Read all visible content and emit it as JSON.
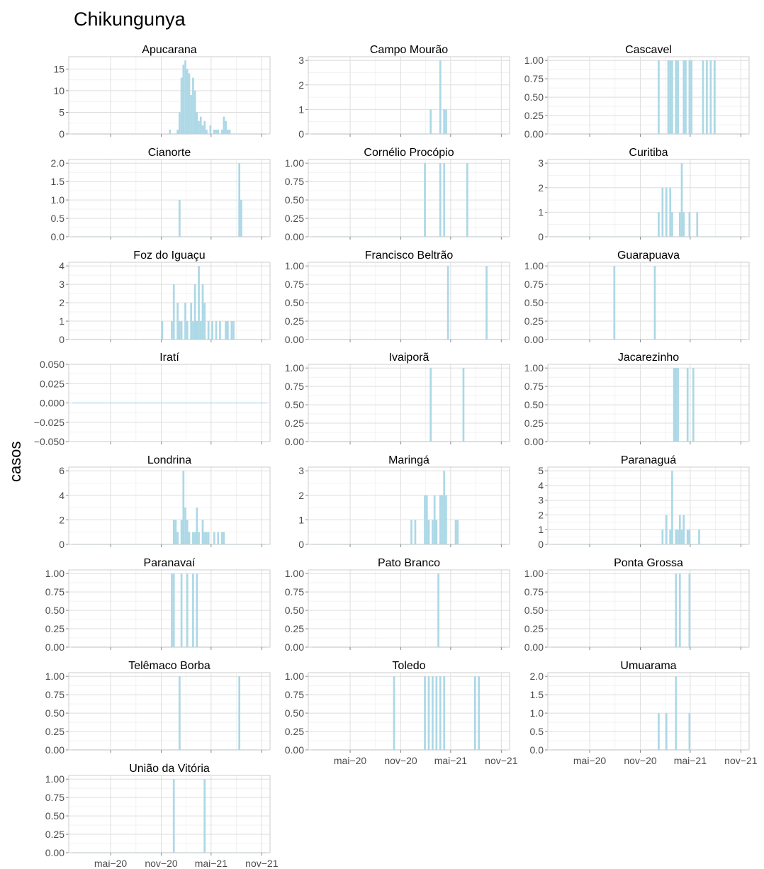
{
  "chart_data": {
    "type": "bar",
    "title": "Chikungunya",
    "xlabel": "",
    "ylabel": "casos",
    "x_tick_labels": [
      "mai−20",
      "nov−20",
      "mai−21",
      "nov−21"
    ],
    "x_tick_dates": [
      "2020-05",
      "2020-11",
      "2021-05",
      "2021-11"
    ],
    "xlim": [
      "2019-12",
      "2021-12"
    ],
    "bar_color": "#ADD8E6",
    "grid": true,
    "panels": [
      {
        "name": "Apucarana",
        "ylim": [
          0,
          17.85
        ],
        "yticks": [
          "0",
          "5",
          "10",
          "15"
        ],
        "ytick_values": [
          0,
          5,
          10,
          15
        ],
        "bars": [
          [
            "2020-11-29",
            1
          ],
          [
            "2020-12-27",
            1
          ],
          [
            "2021-01-03",
            5
          ],
          [
            "2021-01-10",
            13
          ],
          [
            "2021-01-17",
            16
          ],
          [
            "2021-01-24",
            17
          ],
          [
            "2021-01-31",
            15
          ],
          [
            "2021-02-07",
            14
          ],
          [
            "2021-02-14",
            9
          ],
          [
            "2021-02-21",
            13
          ],
          [
            "2021-02-28",
            10
          ],
          [
            "2021-03-07",
            5
          ],
          [
            "2021-03-14",
            3
          ],
          [
            "2021-03-21",
            4
          ],
          [
            "2021-03-28",
            2
          ],
          [
            "2021-04-04",
            3
          ],
          [
            "2021-04-11",
            1
          ],
          [
            "2021-04-25",
            2
          ],
          [
            "2021-05-09",
            1
          ],
          [
            "2021-05-16",
            1
          ],
          [
            "2021-05-23",
            1
          ],
          [
            "2021-06-06",
            1
          ],
          [
            "2021-06-13",
            4
          ],
          [
            "2021-06-20",
            3
          ],
          [
            "2021-06-27",
            1
          ],
          [
            "2021-07-04",
            1
          ]
        ]
      },
      {
        "name": "Campo Mourão",
        "ylim": [
          0,
          3.15
        ],
        "yticks": [
          "0",
          "1",
          "2",
          "3"
        ],
        "ytick_values": [
          0,
          1,
          2,
          3
        ],
        "bars": [
          [
            "2021-02-14",
            1
          ],
          [
            "2021-03-21",
            3
          ],
          [
            "2021-04-04",
            1
          ],
          [
            "2021-04-11",
            1
          ]
        ]
      },
      {
        "name": "Cascavel",
        "ylim": [
          0,
          1.05
        ],
        "yticks": [
          "0.00",
          "0.25",
          "0.50",
          "0.75",
          "1.00"
        ],
        "ytick_values": [
          0,
          0.25,
          0.5,
          0.75,
          1
        ],
        "bars": [
          [
            "2021-01-03",
            1
          ],
          [
            "2021-02-07",
            1
          ],
          [
            "2021-02-14",
            1
          ],
          [
            "2021-02-21",
            1
          ],
          [
            "2021-03-07",
            1
          ],
          [
            "2021-03-14",
            1
          ],
          [
            "2021-04-04",
            1
          ],
          [
            "2021-04-11",
            1
          ],
          [
            "2021-04-25",
            1
          ],
          [
            "2021-05-02",
            1
          ],
          [
            "2021-06-13",
            1
          ],
          [
            "2021-06-27",
            1
          ],
          [
            "2021-07-11",
            1
          ],
          [
            "2021-07-25",
            1
          ]
        ]
      },
      {
        "name": "Cianorte",
        "ylim": [
          0,
          2.1
        ],
        "yticks": [
          "0.0",
          "0.5",
          "1.0",
          "1.5",
          "2.0"
        ],
        "ytick_values": [
          0,
          0.5,
          1,
          1.5,
          2
        ],
        "bars": [
          [
            "2021-01-03",
            1
          ],
          [
            "2021-08-08",
            2
          ],
          [
            "2021-08-15",
            1
          ]
        ]
      },
      {
        "name": "Cornélio Procópio",
        "ylim": [
          0,
          1.05
        ],
        "yticks": [
          "0.00",
          "0.25",
          "0.50",
          "0.75",
          "1.00"
        ],
        "ytick_values": [
          0,
          0.25,
          0.5,
          0.75,
          1
        ],
        "bars": [
          [
            "2021-01-24",
            1
          ],
          [
            "2021-03-21",
            1
          ],
          [
            "2021-04-04",
            1
          ],
          [
            "2021-06-27",
            1
          ]
        ]
      },
      {
        "name": "Curitiba",
        "ylim": [
          0,
          3.15
        ],
        "yticks": [
          "0",
          "1",
          "2",
          "3"
        ],
        "ytick_values": [
          0,
          1,
          2,
          3
        ],
        "bars": [
          [
            "2021-01-03",
            1
          ],
          [
            "2021-01-17",
            2
          ],
          [
            "2021-01-31",
            2
          ],
          [
            "2021-02-14",
            2
          ],
          [
            "2021-02-21",
            1
          ],
          [
            "2021-03-21",
            1
          ],
          [
            "2021-03-28",
            3
          ],
          [
            "2021-04-04",
            1
          ],
          [
            "2021-04-25",
            1
          ],
          [
            "2021-05-23",
            1
          ]
        ]
      },
      {
        "name": "Foz do Iguaçu",
        "ylim": [
          0,
          4.2
        ],
        "yticks": [
          "0",
          "1",
          "2",
          "3",
          "4"
        ],
        "ytick_values": [
          0,
          1,
          2,
          3,
          4
        ],
        "bars": [
          [
            "2020-11-01",
            1
          ],
          [
            "2020-12-06",
            1
          ],
          [
            "2020-12-13",
            3
          ],
          [
            "2020-12-27",
            2
          ],
          [
            "2021-01-03",
            1
          ],
          [
            "2021-01-10",
            1
          ],
          [
            "2021-01-24",
            2
          ],
          [
            "2021-01-31",
            1
          ],
          [
            "2021-02-14",
            2
          ],
          [
            "2021-02-21",
            1
          ],
          [
            "2021-02-28",
            3
          ],
          [
            "2021-03-07",
            1
          ],
          [
            "2021-03-14",
            4
          ],
          [
            "2021-03-21",
            1
          ],
          [
            "2021-03-28",
            3
          ],
          [
            "2021-04-04",
            2
          ],
          [
            "2021-04-18",
            1
          ],
          [
            "2021-05-02",
            1
          ],
          [
            "2021-05-16",
            1
          ],
          [
            "2021-05-30",
            1
          ],
          [
            "2021-06-20",
            1
          ],
          [
            "2021-06-27",
            1
          ],
          [
            "2021-07-11",
            1
          ],
          [
            "2021-07-18",
            1
          ]
        ]
      },
      {
        "name": "Francisco Beltrão",
        "ylim": [
          0,
          1.05
        ],
        "yticks": [
          "0.00",
          "0.25",
          "0.50",
          "0.75",
          "1.00"
        ],
        "ytick_values": [
          0,
          0.25,
          0.5,
          0.75,
          1
        ],
        "bars": [
          [
            "2021-04-18",
            1
          ],
          [
            "2021-09-05",
            1
          ]
        ]
      },
      {
        "name": "Guarapuava",
        "ylim": [
          0,
          1.05
        ],
        "yticks": [
          "0.00",
          "0.25",
          "0.50",
          "0.75",
          "1.00"
        ],
        "ytick_values": [
          0,
          0.25,
          0.5,
          0.75,
          1
        ],
        "bars": [
          [
            "2020-07-26",
            1
          ],
          [
            "2020-12-20",
            1
          ]
        ]
      },
      {
        "name": "Iratí",
        "ylim": [
          -0.05,
          0.05
        ],
        "yticks": [
          "−0.050",
          "−0.025",
          "0.000",
          "0.025",
          "0.050"
        ],
        "ytick_values": [
          -0.05,
          -0.025,
          0,
          0.025,
          0.05
        ],
        "bars": []
      },
      {
        "name": "Ivaiporã",
        "ylim": [
          0,
          1.05
        ],
        "yticks": [
          "0.00",
          "0.25",
          "0.50",
          "0.75",
          "1.00"
        ],
        "ytick_values": [
          0,
          0.25,
          0.5,
          0.75,
          1
        ],
        "bars": [
          [
            "2021-02-14",
            1
          ],
          [
            "2021-06-13",
            1
          ]
        ]
      },
      {
        "name": "Jacarezinho",
        "ylim": [
          0,
          1.05
        ],
        "yticks": [
          "0.00",
          "0.25",
          "0.50",
          "0.75",
          "1.00"
        ],
        "ytick_values": [
          0,
          0.25,
          0.5,
          0.75,
          1
        ],
        "bars": [
          [
            "2021-02-28",
            1
          ],
          [
            "2021-03-07",
            1
          ],
          [
            "2021-03-14",
            1
          ],
          [
            "2021-04-18",
            1
          ],
          [
            "2021-05-09",
            1
          ]
        ]
      },
      {
        "name": "Londrina",
        "ylim": [
          0,
          6.3
        ],
        "yticks": [
          "0",
          "2",
          "4",
          "6"
        ],
        "ytick_values": [
          0,
          2,
          4,
          6
        ],
        "bars": [
          [
            "2020-12-13",
            2
          ],
          [
            "2020-12-20",
            2
          ],
          [
            "2020-12-27",
            1
          ],
          [
            "2021-01-10",
            2
          ],
          [
            "2021-01-17",
            6
          ],
          [
            "2021-01-24",
            3
          ],
          [
            "2021-01-31",
            2
          ],
          [
            "2021-02-07",
            1
          ],
          [
            "2021-02-21",
            1
          ],
          [
            "2021-02-28",
            1
          ],
          [
            "2021-03-07",
            3
          ],
          [
            "2021-03-14",
            1
          ],
          [
            "2021-03-28",
            2
          ],
          [
            "2021-04-04",
            1
          ],
          [
            "2021-04-11",
            1
          ],
          [
            "2021-04-18",
            1
          ],
          [
            "2021-05-09",
            1
          ],
          [
            "2021-05-23",
            1
          ],
          [
            "2021-06-06",
            1
          ],
          [
            "2021-06-13",
            1
          ]
        ]
      },
      {
        "name": "Maringá",
        "ylim": [
          0,
          3.15
        ],
        "yticks": [
          "0",
          "1",
          "2",
          "3"
        ],
        "ytick_values": [
          0,
          1,
          2,
          3
        ],
        "bars": [
          [
            "2020-12-06",
            1
          ],
          [
            "2020-12-20",
            1
          ],
          [
            "2021-01-24",
            2
          ],
          [
            "2021-01-31",
            2
          ],
          [
            "2021-02-07",
            1
          ],
          [
            "2021-02-21",
            1
          ],
          [
            "2021-02-28",
            2
          ],
          [
            "2021-03-07",
            1
          ],
          [
            "2021-03-21",
            2
          ],
          [
            "2021-03-28",
            2
          ],
          [
            "2021-04-04",
            3
          ],
          [
            "2021-04-11",
            2
          ],
          [
            "2021-05-16",
            1
          ],
          [
            "2021-05-23",
            1
          ]
        ]
      },
      {
        "name": "Paranaguá",
        "ylim": [
          0,
          5.25
        ],
        "yticks": [
          "0",
          "1",
          "2",
          "3",
          "4",
          "5"
        ],
        "ytick_values": [
          0,
          1,
          2,
          3,
          4,
          5
        ],
        "bars": [
          [
            "2021-01-17",
            1
          ],
          [
            "2021-01-31",
            2
          ],
          [
            "2021-02-14",
            1
          ],
          [
            "2021-02-21",
            5
          ],
          [
            "2021-03-07",
            1
          ],
          [
            "2021-03-14",
            1
          ],
          [
            "2021-03-21",
            2
          ],
          [
            "2021-03-28",
            1
          ],
          [
            "2021-04-04",
            2
          ],
          [
            "2021-04-18",
            1
          ],
          [
            "2021-04-25",
            1
          ],
          [
            "2021-05-30",
            1
          ]
        ]
      },
      {
        "name": "Paranavaí",
        "ylim": [
          0,
          1.05
        ],
        "yticks": [
          "0.00",
          "0.25",
          "0.50",
          "0.75",
          "1.00"
        ],
        "ytick_values": [
          0,
          0.25,
          0.5,
          0.75,
          1
        ],
        "bars": [
          [
            "2020-12-06",
            1
          ],
          [
            "2020-12-13",
            1
          ],
          [
            "2021-01-10",
            1
          ],
          [
            "2021-01-31",
            1
          ],
          [
            "2021-02-21",
            1
          ],
          [
            "2021-03-07",
            1
          ]
        ]
      },
      {
        "name": "Pato Branco",
        "ylim": [
          0,
          1.05
        ],
        "yticks": [
          "0.00",
          "0.25",
          "0.50",
          "0.75",
          "1.00"
        ],
        "ytick_values": [
          0,
          0.25,
          0.5,
          0.75,
          1
        ],
        "bars": [
          [
            "2021-03-14",
            1
          ]
        ]
      },
      {
        "name": "Ponta Grossa",
        "ylim": [
          0,
          1.05
        ],
        "yticks": [
          "0.00",
          "0.25",
          "0.50",
          "0.75",
          "1.00"
        ],
        "ytick_values": [
          0,
          0.25,
          0.5,
          0.75,
          1
        ],
        "bars": [
          [
            "2021-03-07",
            1
          ],
          [
            "2021-03-21",
            1
          ],
          [
            "2021-04-25",
            1
          ]
        ]
      },
      {
        "name": "Telêmaco Borba",
        "ylim": [
          0,
          1.05
        ],
        "yticks": [
          "0.00",
          "0.25",
          "0.50",
          "0.75",
          "1.00"
        ],
        "ytick_values": [
          0,
          0.25,
          0.5,
          0.75,
          1
        ],
        "bars": [
          [
            "2021-01-03",
            1
          ],
          [
            "2021-08-08",
            1
          ]
        ]
      },
      {
        "name": "Toledo",
        "ylim": [
          0,
          1.05
        ],
        "yticks": [
          "0.00",
          "0.25",
          "0.50",
          "0.75",
          "1.00"
        ],
        "ytick_values": [
          0,
          0.25,
          0.5,
          0.75,
          1
        ],
        "bars": [
          [
            "2020-10-04",
            1
          ],
          [
            "2021-01-24",
            1
          ],
          [
            "2021-02-07",
            1
          ],
          [
            "2021-02-21",
            1
          ],
          [
            "2021-03-07",
            1
          ],
          [
            "2021-03-21",
            1
          ],
          [
            "2021-04-04",
            1
          ],
          [
            "2021-07-25",
            1
          ],
          [
            "2021-08-08",
            1
          ]
        ]
      },
      {
        "name": "Umuarama",
        "ylim": [
          0,
          2.1
        ],
        "yticks": [
          "0.0",
          "0.5",
          "1.0",
          "1.5",
          "2.0"
        ],
        "ytick_values": [
          0,
          0.5,
          1,
          1.5,
          2
        ],
        "bars": [
          [
            "2021-01-03",
            1
          ],
          [
            "2021-01-31",
            1
          ],
          [
            "2021-03-07",
            2
          ],
          [
            "2021-04-25",
            1
          ]
        ]
      },
      {
        "name": "União da Vitória",
        "ylim": [
          0,
          1.05
        ],
        "yticks": [
          "0.00",
          "0.25",
          "0.50",
          "0.75",
          "1.00"
        ],
        "ytick_values": [
          0,
          0.25,
          0.5,
          0.75,
          1
        ],
        "bars": [
          [
            "2020-12-13",
            1
          ],
          [
            "2021-04-04",
            1
          ]
        ]
      }
    ]
  }
}
